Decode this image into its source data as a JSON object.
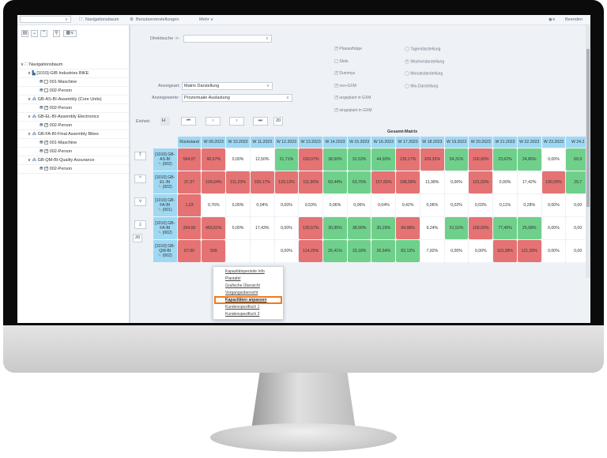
{
  "topbar": {
    "nav": "Navigationsbaum",
    "settings": "Benutzereinstellungen",
    "more": "Mehr ∨",
    "exit": "Beenden"
  },
  "tree": [
    {
      "label": "Navigationsbaum",
      "level": 0,
      "type": "root"
    },
    {
      "label": "[1010]-GIB Industries BIKE",
      "level": 1,
      "type": "folder"
    },
    {
      "label": "001-Maschine",
      "level": 2,
      "type": "leaf",
      "checked": false
    },
    {
      "label": "002-Person",
      "level": 2,
      "type": "leaf",
      "checked": false
    },
    {
      "label": "GB-AS-BI-Assembly (Core Units)",
      "level": 1,
      "type": "group"
    },
    {
      "label": "002-Person",
      "level": 2,
      "type": "leaf",
      "checked": true
    },
    {
      "label": "GB-EL-BI-Assembly Electronics",
      "level": 1,
      "type": "group"
    },
    {
      "label": "002-Person",
      "level": 2,
      "type": "leaf",
      "checked": true
    },
    {
      "label": "GB-FA-BI-Final Assembly Bikes",
      "level": 1,
      "type": "group"
    },
    {
      "label": "001-Maschine",
      "level": 2,
      "type": "leaf",
      "checked": true
    },
    {
      "label": "002-Person",
      "level": 2,
      "type": "leaf",
      "checked": true
    },
    {
      "label": "GB-QM-BI-Quality Assurance",
      "level": 1,
      "type": "group"
    },
    {
      "label": "002-Person",
      "level": 2,
      "type": "leaf",
      "checked": true
    }
  ],
  "form": {
    "direktsuche_label": "Direktsuche ->:",
    "direktsuche_value": "",
    "anzeigeart_label": "Anzeigeart:",
    "anzeigeart_value": "Matrix Darstellung",
    "anzeigewerte_label": "Anzeigewerte:",
    "anzeigewerte_value": "Prozentuale Auslastung",
    "einheit_label": "Einheit:",
    "einheit_value": "H",
    "count": "20",
    "side_count": "20"
  },
  "checkboxes": [
    {
      "label": "Planaufträge",
      "checked": true
    },
    {
      "label": "Slots",
      "checked": false
    },
    {
      "label": "Dummys",
      "checked": true
    },
    {
      "label": "non-GXM",
      "checked": true
    },
    {
      "label": "ungeplant in GXM",
      "checked": true
    },
    {
      "label": "eingeplant in GXM",
      "checked": true
    }
  ],
  "radios": [
    {
      "label": "Tagendarstellung",
      "selected": false
    },
    {
      "label": "Wochendarstellung",
      "selected": true
    },
    {
      "label": "Monatsdarstellung",
      "selected": false
    },
    {
      "label": "Mix-Darstellung",
      "selected": false
    }
  ],
  "matrix": {
    "title": "Gesamt-Matrix",
    "columns": [
      "Rückstand",
      "W 09.2023",
      "W 10.2023",
      "W 11.2023",
      "W 12.2023",
      "W 13.2023",
      "W 14.2023",
      "W 15.2023",
      "W 16.2023",
      "W 17.2023",
      "W 18.2023",
      "W 19.2023",
      "W 20.2023",
      "W 21.2023",
      "W 22.2023",
      "W 23.2023",
      "W 24.2"
    ],
    "colors": {
      "red": "#e57373",
      "green": "#6fd08b",
      "white": "#ffffff"
    },
    "rows": [
      {
        "label": "[1010] GB-AS-BI",
        "sub": "(002)",
        "cells": [
          [
            "564,07",
            "red"
          ],
          [
            "96,67%",
            "red"
          ],
          [
            "0,00%",
            "white"
          ],
          [
            "12,50%",
            "white"
          ],
          [
            "21,71%",
            "green"
          ],
          [
            "150,07%",
            "red"
          ],
          [
            "38,50%",
            "green"
          ],
          [
            "31,53%",
            "green"
          ],
          [
            "44,93%",
            "green"
          ],
          [
            "135,17%",
            "red"
          ],
          [
            "109,33%",
            "red"
          ],
          [
            "54,31%",
            "green"
          ],
          [
            "100,00%",
            "red"
          ],
          [
            "23,62%",
            "green"
          ],
          [
            "24,86%",
            "green"
          ],
          [
            "0,00%",
            "white"
          ],
          [
            "69,9",
            "green"
          ]
        ]
      },
      {
        "label": "[1010] GB-EL-BI",
        "sub": "(002)",
        "cells": [
          [
            "37,37",
            "red"
          ],
          [
            "109,64%",
            "red"
          ],
          [
            "111,23%",
            "red"
          ],
          [
            "159,17%",
            "red"
          ],
          [
            "133,13%",
            "red"
          ],
          [
            "111,90%",
            "red"
          ],
          [
            "60,44%",
            "green"
          ],
          [
            "63,75%",
            "green"
          ],
          [
            "157,65%",
            "red"
          ],
          [
            "108,58%",
            "red"
          ],
          [
            "11,98%",
            "white"
          ],
          [
            "0,00%",
            "white"
          ],
          [
            "101,02%",
            "red"
          ],
          [
            "0,00%",
            "white"
          ],
          [
            "17,42%",
            "white"
          ],
          [
            "100,00%",
            "red"
          ],
          [
            "29,7",
            "green"
          ]
        ]
      },
      {
        "label": "[1010] GB-FA-BI",
        "sub": "(001)",
        "cells": [
          [
            "1,23",
            "red"
          ],
          [
            "0,76%",
            "white"
          ],
          [
            "0,00%",
            "white"
          ],
          [
            "0,04%",
            "white"
          ],
          [
            "0,00%",
            "white"
          ],
          [
            "0,53%",
            "white"
          ],
          [
            "0,06%",
            "white"
          ],
          [
            "0,06%",
            "white"
          ],
          [
            "0,04%",
            "white"
          ],
          [
            "0,42%",
            "white"
          ],
          [
            "0,06%",
            "white"
          ],
          [
            "0,02%",
            "white"
          ],
          [
            "0,03%",
            "white"
          ],
          [
            "0,11%",
            "white"
          ],
          [
            "0,28%",
            "white"
          ],
          [
            "0,00%",
            "white"
          ],
          [
            "0,00",
            "white"
          ]
        ]
      },
      {
        "label": "[1010] GB-FA-BI",
        "sub": "(002)",
        "cells": [
          [
            "204,00",
            "red"
          ],
          [
            "455,61%",
            "red"
          ],
          [
            "0,00%",
            "white"
          ],
          [
            "17,43%",
            "white"
          ],
          [
            "0,00%",
            "white"
          ],
          [
            "130,57%",
            "red"
          ],
          [
            "30,95%",
            "green"
          ],
          [
            "38,90%",
            "green"
          ],
          [
            "30,29%",
            "green"
          ],
          [
            "94,98%",
            "red"
          ],
          [
            "9,24%",
            "white"
          ],
          [
            "51,52%",
            "green"
          ],
          [
            "100,00%",
            "red"
          ],
          [
            "77,45%",
            "green"
          ],
          [
            "25,08%",
            "green"
          ],
          [
            "0,00%",
            "white"
          ],
          [
            "0,00",
            "white"
          ]
        ]
      },
      {
        "label": "[1010] GB-QM-BI",
        "sub": "(002)",
        "cells": [
          [
            "67,60",
            "red"
          ],
          [
            "509",
            "red"
          ],
          [
            "",
            "white"
          ],
          [
            "",
            "white"
          ],
          [
            "0,00%",
            "white"
          ],
          [
            "114,25%",
            "red"
          ],
          [
            "26,41%",
            "green"
          ],
          [
            "33,18%",
            "green"
          ],
          [
            "26,54%",
            "green"
          ],
          [
            "83,13%",
            "green"
          ],
          [
            "7,92%",
            "white"
          ],
          [
            "0,00%",
            "white"
          ],
          [
            "0,00%",
            "white"
          ],
          [
            "110,38%",
            "red"
          ],
          [
            "121,30%",
            "red"
          ],
          [
            "0,00%",
            "white"
          ],
          [
            "0,00",
            "white"
          ]
        ]
      }
    ]
  },
  "context_menu": {
    "items": [
      "Kapazitätsperiode Info",
      "Plantafel",
      "Grafische Übersicht",
      "Vorgangsübersicht",
      "Kapazitäten anpassen",
      "Kundenspezifisch 1",
      "Kundenspezifisch 2"
    ],
    "highlighted": 4,
    "highlight_color": "#f07a1a"
  }
}
